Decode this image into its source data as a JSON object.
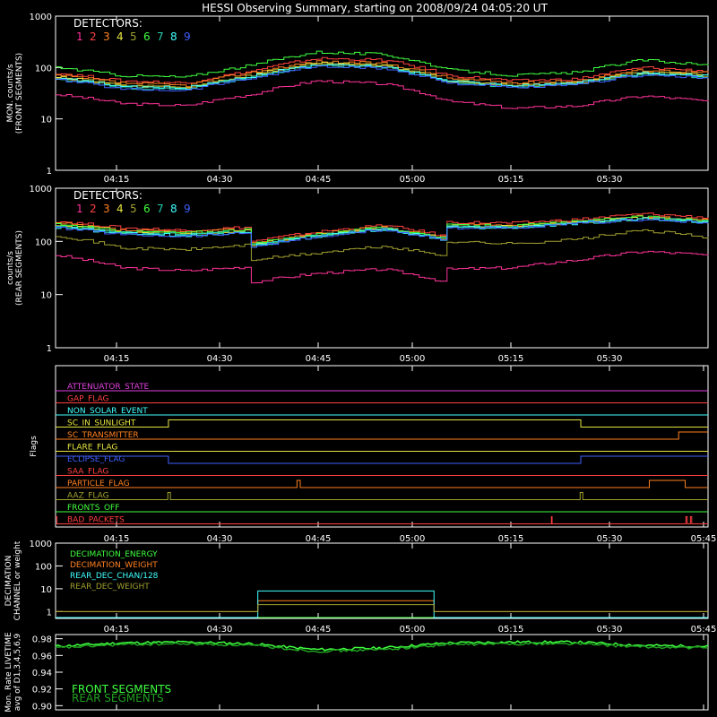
{
  "title": "HESSI Observing Summary, starting on 2008/09/24 04:05:20 UT",
  "colors": {
    "background": "#000000",
    "axis": "#ffffff",
    "det": [
      "#ff3399",
      "#ff4040",
      "#ff8020",
      "#e6e640",
      "#a0a030",
      "#40ff40",
      "#20d0b0",
      "#40ffff",
      "#4060ff"
    ]
  },
  "time_ticks": [
    "04:15",
    "04:30",
    "04:45",
    "05:00",
    "05:15",
    "05:30",
    "05:45"
  ],
  "chart_data": [
    {
      "type": "line",
      "ylabel": "MON. counts/s",
      "ylabel2": "(FRONT SEGMENTS)",
      "legend_title": "DETECTORS:",
      "legend_numbers": [
        "1",
        "2",
        "3",
        "4",
        "5",
        "6",
        "7",
        "8",
        "9"
      ],
      "y_scale": "log",
      "ylim": [
        1,
        1000
      ],
      "y_ticks": [
        "1000",
        "100",
        "10",
        "1"
      ],
      "x_minutes": [
        0,
        10,
        20,
        30,
        40,
        50,
        60,
        70,
        80,
        90,
        100
      ],
      "series": [
        {
          "values": [
            30,
            20,
            18,
            30,
            55,
            48,
            22,
            16,
            18,
            28,
            22
          ]
        },
        {
          "values": [
            78,
            55,
            50,
            85,
            150,
            140,
            70,
            55,
            60,
            100,
            85
          ]
        },
        {
          "values": [
            70,
            50,
            45,
            80,
            130,
            120,
            62,
            50,
            55,
            90,
            80
          ]
        },
        {
          "values": [
            65,
            45,
            40,
            72,
            120,
            110,
            55,
            45,
            50,
            80,
            72
          ]
        },
        {
          "values": [
            65,
            45,
            40,
            70,
            118,
            108,
            54,
            44,
            50,
            80,
            70
          ]
        },
        {
          "values": [
            100,
            70,
            65,
            110,
            200,
            180,
            90,
            70,
            80,
            140,
            110
          ]
        },
        {
          "values": [
            60,
            40,
            38,
            65,
            110,
            100,
            52,
            42,
            48,
            75,
            65
          ]
        },
        {
          "values": [
            62,
            42,
            40,
            68,
            112,
            104,
            54,
            44,
            50,
            78,
            68
          ]
        },
        {
          "values": [
            58,
            38,
            36,
            62,
            105,
            96,
            50,
            40,
            46,
            72,
            62
          ]
        }
      ]
    },
    {
      "type": "line",
      "ylabel": "counts/s",
      "ylabel2": "(REAR SEGMENTS)",
      "legend_title": "DETECTORS:",
      "legend_numbers": [
        "1",
        "2",
        "3",
        "4",
        "5",
        "6",
        "7",
        "8",
        "9"
      ],
      "y_scale": "log",
      "ylim": [
        1,
        1000
      ],
      "y_ticks": [
        "1000",
        "100",
        "10",
        "1"
      ],
      "x_minutes": [
        0,
        10,
        20,
        29,
        30,
        40,
        50,
        59,
        60,
        70,
        80,
        90,
        100
      ],
      "series": [
        {
          "values": [
            55,
            32,
            28,
            33,
            17,
            25,
            30,
            18,
            30,
            32,
            45,
            65,
            55
          ]
        },
        {
          "values": [
            240,
            180,
            160,
            185,
            100,
            150,
            200,
            130,
            230,
            220,
            260,
            330,
            280
          ]
        },
        {
          "values": [
            220,
            160,
            150,
            170,
            92,
            140,
            185,
            120,
            210,
            200,
            240,
            300,
            250
          ]
        },
        {
          "values": [
            200,
            150,
            140,
            160,
            88,
            130,
            175,
            115,
            195,
            190,
            230,
            280,
            235
          ]
        },
        {
          "values": [
            130,
            75,
            70,
            85,
            45,
            60,
            80,
            55,
            100,
            90,
            110,
            160,
            120
          ]
        },
        {
          "values": [
            210,
            155,
            145,
            165,
            90,
            135,
            180,
            118,
            200,
            195,
            235,
            290,
            240
          ]
        },
        {
          "values": [
            195,
            145,
            135,
            155,
            85,
            128,
            172,
            112,
            190,
            185,
            225,
            275,
            230
          ]
        },
        {
          "values": [
            185,
            140,
            130,
            150,
            82,
            124,
            168,
            110,
            185,
            180,
            220,
            265,
            225
          ]
        },
        {
          "values": [
            180,
            135,
            125,
            145,
            80,
            120,
            165,
            108,
            180,
            175,
            215,
            260,
            220
          ]
        }
      ]
    },
    {
      "type": "line",
      "ylabel": "Flags",
      "flags": [
        {
          "label": "ATTENUATOR_STATE",
          "color": "#e040e0",
          "segments": []
        },
        {
          "label": "GAP_FLAG",
          "color": "#ff4040",
          "segments": []
        },
        {
          "label": "NON_SOLAR_EVENT",
          "color": "#40ffff",
          "segments": []
        },
        {
          "label": "SC_IN_SUNLIGHT",
          "color": "#e6e640",
          "segments": [
            [
              0,
              0
            ],
            [
              17.3,
              1
            ],
            [
              80.5,
              0
            ]
          ]
        },
        {
          "label": "SC_TRANSMITTER",
          "color": "#ff8020",
          "segments": [
            [
              0,
              0
            ],
            [
              95.5,
              1
            ]
          ]
        },
        {
          "label": "FLARE_FLAG",
          "color": "#e6e640",
          "segments": []
        },
        {
          "label": "ECLIPSE_FLAG",
          "color": "#4060ff",
          "segments": [
            [
              0,
              1
            ],
            [
              17.3,
              0
            ],
            [
              80.5,
              1
            ]
          ]
        },
        {
          "label": "SAA_FLAG",
          "color": "#ff4040",
          "segments": []
        },
        {
          "label": "PARTICLE_FLAG",
          "color": "#ff8020",
          "segments": [
            [
              0,
              0
            ],
            [
              37,
              1
            ],
            [
              37.5,
              0
            ],
            [
              91,
              1
            ],
            [
              96.5,
              0
            ]
          ]
        },
        {
          "label": "AAZ_FLAG",
          "color": "#a0a030",
          "segments": [
            [
              0,
              0
            ],
            [
              17.2,
              1
            ],
            [
              17.6,
              0
            ],
            [
              80.4,
              1
            ],
            [
              80.8,
              0
            ]
          ]
        },
        {
          "label": "FRONTS_OFF",
          "color": "#40ff40",
          "segments": []
        },
        {
          "label": "BAD_PACKETS",
          "color": "#ff4040",
          "segments": [
            [
              0,
              1
            ],
            [
              0.2,
              0
            ],
            [
              76,
              1
            ],
            [
              76.1,
              0
            ],
            [
              96.6,
              1
            ],
            [
              96.8,
              0
            ],
            [
              97.3,
              1
            ],
            [
              97.5,
              0
            ]
          ]
        }
      ]
    },
    {
      "type": "line",
      "ylabel": "DECIMATION",
      "ylabel2": "CHANNEL or weight",
      "y_scale": "log",
      "ylim": [
        0.5,
        1000
      ],
      "y_ticks": [
        "1000",
        "100",
        "10",
        "1"
      ],
      "series": [
        {
          "name": "DECIMATION_ENERGY",
          "color": "#40ff40",
          "values": [
            [
              0,
              0
            ],
            [
              100,
              0
            ]
          ]
        },
        {
          "name": "DECIMATION_WEIGHT",
          "color": "#ff8020",
          "values": [
            [
              0,
              1
            ],
            [
              31,
              1
            ],
            [
              31,
              3
            ],
            [
              58,
              3
            ],
            [
              58,
              1
            ],
            [
              100,
              1
            ]
          ]
        },
        {
          "name": "REAR_DEC_CHAN/128",
          "color": "#40ffff",
          "values": [
            [
              0,
              0
            ],
            [
              31,
              0
            ],
            [
              31,
              8
            ],
            [
              58,
              8
            ],
            [
              58,
              0
            ],
            [
              100,
              0
            ]
          ]
        },
        {
          "name": "REAR_DEC_WEIGHT",
          "color": "#a0a030",
          "values": [
            [
              0,
              1
            ],
            [
              31,
              1
            ],
            [
              31,
              2
            ],
            [
              58,
              2
            ],
            [
              58,
              1
            ],
            [
              100,
              1
            ]
          ]
        }
      ]
    },
    {
      "type": "line",
      "ylabel": "Mon. Rate LIVETIME",
      "ylabel2": "avg of D1,3,4,5,6,9",
      "ylim": [
        0.895,
        0.985
      ],
      "y_ticks": [
        "0.98",
        "0.96",
        "0.94",
        "0.92",
        "0.90"
      ],
      "series": [
        {
          "name": "FRONT SEGMENTS",
          "color": "#40ff40",
          "values": [
            0.971,
            0.975,
            0.976,
            0.974,
            0.967,
            0.969,
            0.975,
            0.976,
            0.976,
            0.972,
            0.971
          ]
        },
        {
          "name": "REAR SEGMENTS",
          "color": "#20a020",
          "values": [
            0.969,
            0.973,
            0.974,
            0.972,
            0.965,
            0.967,
            0.973,
            0.974,
            0.974,
            0.97,
            0.969
          ]
        }
      ]
    }
  ]
}
